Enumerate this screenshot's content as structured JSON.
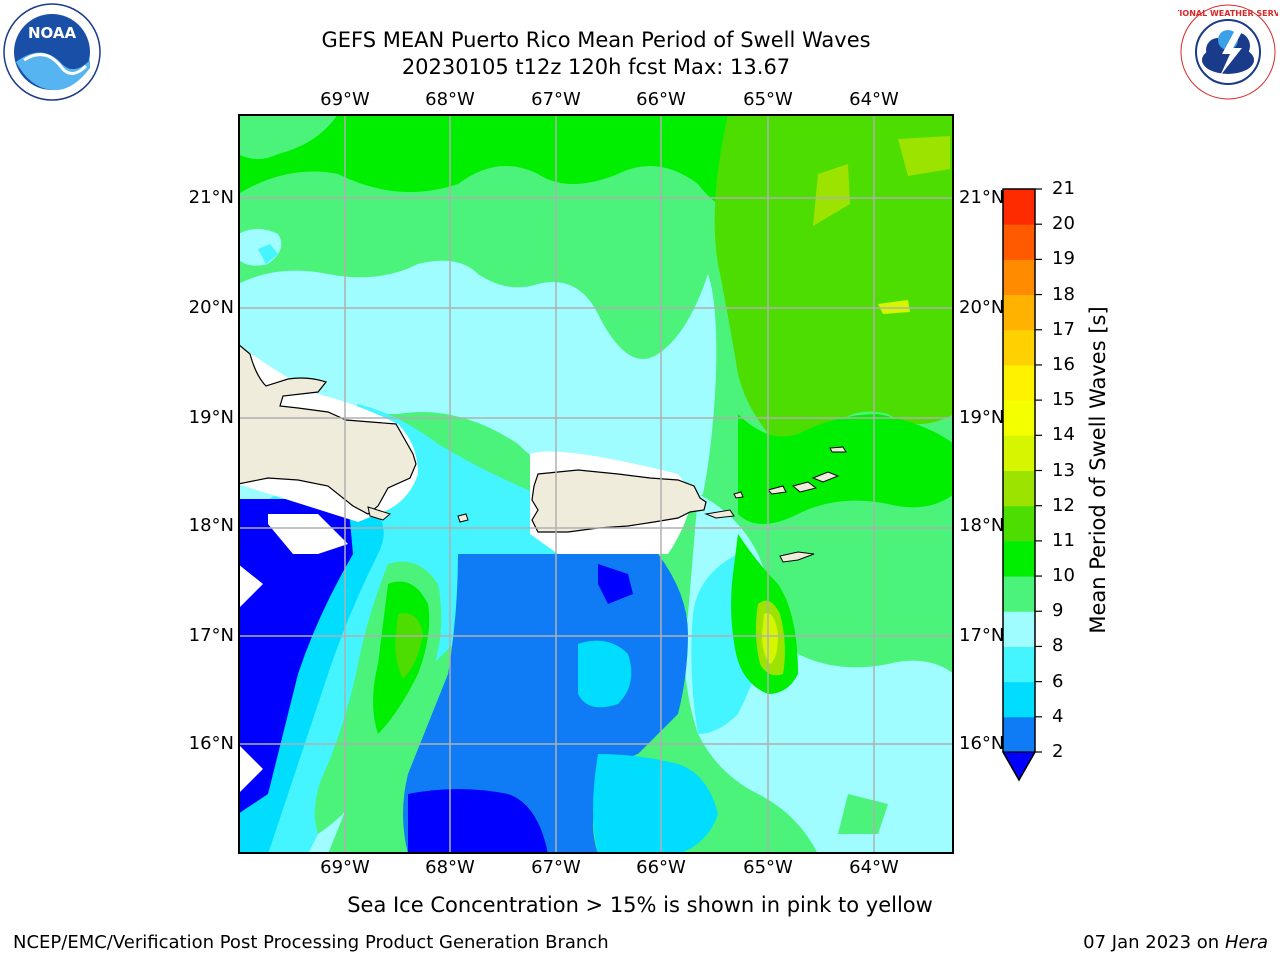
{
  "title_line1": "GEFS MEAN Puerto Rico Mean Period of Swell Waves",
  "title_line2": "20230105 t12z 120h fcst   Max: 13.67",
  "map": {
    "lon_ticks": [
      "69°W",
      "68°W",
      "67°W",
      "66°W",
      "65°W",
      "64°W"
    ],
    "lat_ticks": [
      "21°N",
      "20°N",
      "19°N",
      "18°N",
      "17°N",
      "16°N"
    ],
    "lon_range": [
      -70.0,
      -63.25
    ],
    "lat_range": [
      15.0,
      21.75
    ],
    "land_color": "#efecdc",
    "masked_color": "#ffffff"
  },
  "colorbar": {
    "label": "Mean Period of Swell Waves [s]",
    "tick_labels": [
      "2",
      "4",
      "6",
      "8",
      "9",
      "10",
      "11",
      "12",
      "13",
      "14",
      "15",
      "16",
      "17",
      "18",
      "19",
      "20",
      "21"
    ],
    "colors": [
      "#0f7cf5",
      "#00ddff",
      "#44f4ff",
      "#9ffcff",
      "#4cf37a",
      "#00ee00",
      "#4ddd00",
      "#9ce400",
      "#d6f600",
      "#f4ff00",
      "#fff200",
      "#ffd100",
      "#ffb300",
      "#ff8c00",
      "#ff5a00",
      "#ff2b00"
    ],
    "extend_color": "#0000ff"
  },
  "note": "Sea Ice Concentration > 15% is shown in pink to yellow",
  "footer_left": "NCEP/EMC/Verification Post Processing Product Generation Branch",
  "footer_date": "07 Jan 2023 on",
  "footer_host": "Hera",
  "logos": {
    "noaa_text": "NOAA",
    "nws_text": "NATIONAL WEATHER SERVICE"
  }
}
